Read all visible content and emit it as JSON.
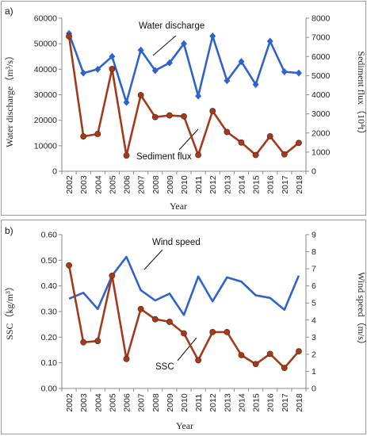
{
  "chart_data": [
    {
      "type": "line",
      "panel_label": "a)",
      "categories": [
        "2002",
        "2003",
        "2004",
        "2005",
        "2006",
        "2007",
        "2008",
        "2009",
        "2010",
        "2011",
        "2012",
        "2013",
        "2014",
        "2015",
        "2016",
        "2017",
        "2018"
      ],
      "xlabel": "Year",
      "ylabel_left": "Water discharge（m³/s）",
      "ylabel_right": "Sediment flux（10⁴t）",
      "ylim_left": [
        0,
        60000
      ],
      "ylim_right": [
        0,
        8000
      ],
      "yticks_left": [
        "0",
        "10000",
        "20000",
        "30000",
        "40000",
        "50000",
        "60000"
      ],
      "yticks_right": [
        "0",
        "1000",
        "2000",
        "3000",
        "4000",
        "5000",
        "6000",
        "7000",
        "8000"
      ],
      "series": [
        {
          "name": "Water discharge",
          "axis": "left",
          "color": "#2f63c9",
          "marker": "diamond",
          "values": [
            54000,
            38500,
            40000,
            45000,
            27000,
            47500,
            39500,
            42500,
            50000,
            29500,
            53000,
            35500,
            43000,
            34000,
            51000,
            39000,
            38500
          ]
        },
        {
          "name": "Sediment flux",
          "axis": "right",
          "color": "#a23b1c",
          "marker": "circle",
          "values": [
            7050,
            1820,
            1950,
            5350,
            820,
            3980,
            2830,
            2920,
            2870,
            850,
            3150,
            2050,
            1500,
            850,
            1830,
            880,
            1480
          ]
        }
      ]
    },
    {
      "type": "line",
      "panel_label": "b)",
      "categories": [
        "2002",
        "2003",
        "2004",
        "2005",
        "2006",
        "2007",
        "2008",
        "2009",
        "2010",
        "2011",
        "2012",
        "2013",
        "2014",
        "2015",
        "2016",
        "2017",
        "2018"
      ],
      "xlabel": "Year",
      "ylabel_left": "SSC（kg/m³）",
      "ylabel_right": "Wind speed（m/s）",
      "ylim_left": [
        0,
        0.6
      ],
      "ylim_right": [
        0,
        9
      ],
      "yticks_left": [
        "0.00",
        "0.10",
        "0.20",
        "0.30",
        "0.40",
        "0.50",
        "0.60"
      ],
      "yticks_right": [
        "0",
        "1",
        "2",
        "3",
        "4",
        "5",
        "6",
        "7",
        "8",
        "9"
      ],
      "series": [
        {
          "name": "Wind speed",
          "axis": "right",
          "color": "#2f63c9",
          "marker": "none",
          "values": [
            5.25,
            5.6,
            4.65,
            6.6,
            7.7,
            5.75,
            5.15,
            5.55,
            4.3,
            6.55,
            5.1,
            6.5,
            6.25,
            5.45,
            5.3,
            4.6,
            6.6
          ]
        },
        {
          "name": "SSC",
          "axis": "left",
          "color": "#a23b1c",
          "marker": "circle",
          "values": [
            0.48,
            0.18,
            0.185,
            0.44,
            0.115,
            0.31,
            0.27,
            0.26,
            0.215,
            0.11,
            0.22,
            0.22,
            0.13,
            0.095,
            0.135,
            0.08,
            0.145
          ]
        }
      ]
    }
  ],
  "annotations": {
    "a_water": "Water discharge",
    "a_sediment": "Sediment flux",
    "b_wind": "Wind speed",
    "b_ssc": "SSC"
  }
}
